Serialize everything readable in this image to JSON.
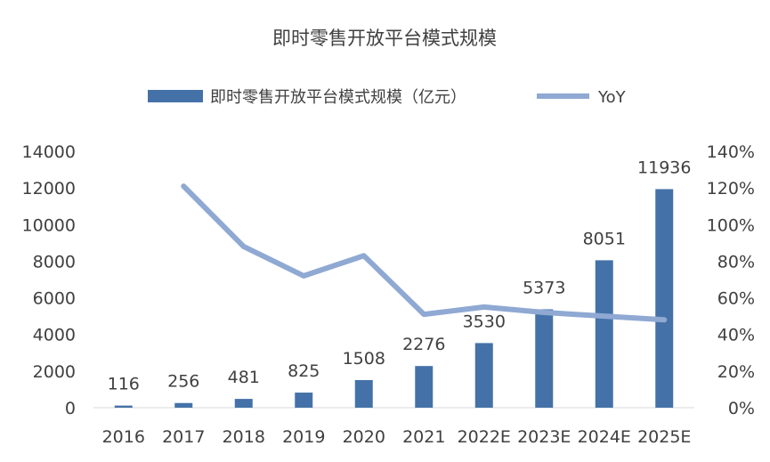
{
  "chart_data": {
    "type": "bar+line",
    "title": "即时零售开放平台模式规模",
    "categories": [
      "2016",
      "2017",
      "2018",
      "2019",
      "2020",
      "2021",
      "2022E",
      "2023E",
      "2024E",
      "2025E"
    ],
    "series": [
      {
        "name": "即时零售开放平台模式规模（亿元）",
        "type": "bar",
        "axis": "left",
        "values": [
          116,
          256,
          481,
          825,
          1508,
          2276,
          3530,
          5373,
          8051,
          11936
        ],
        "data_labels": [
          "116",
          "256",
          "481",
          "825",
          "1508",
          "2276",
          "3530",
          "5373",
          "8051",
          "11936"
        ]
      },
      {
        "name": "YoY",
        "type": "line",
        "axis": "right",
        "values": [
          null,
          121,
          88,
          72,
          83,
          51,
          55,
          52,
          50,
          48
        ]
      }
    ],
    "y_left": {
      "ylim": [
        0,
        14000
      ],
      "ticks": [
        "0",
        "2000",
        "4000",
        "6000",
        "8000",
        "10000",
        "12000",
        "14000"
      ]
    },
    "y_right": {
      "ylim": [
        0,
        140
      ],
      "ticks": [
        "0%",
        "20%",
        "40%",
        "60%",
        "80%",
        "100%",
        "120%",
        "140%"
      ]
    },
    "legend_position": "top",
    "grid": false,
    "colors": {
      "bar": "#4472a8",
      "line": "#8fa9d3",
      "text": "#404040",
      "axis": "#d9d9d9"
    }
  }
}
